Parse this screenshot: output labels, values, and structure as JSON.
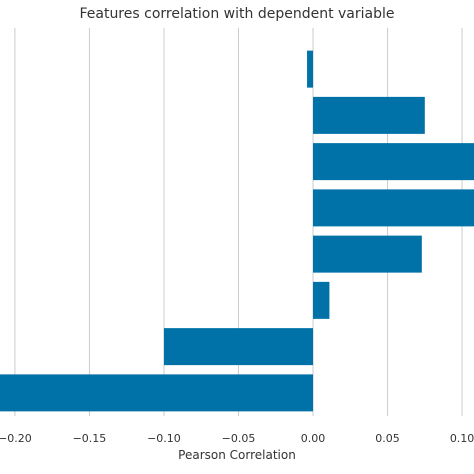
{
  "chart_data": {
    "type": "bar",
    "orientation": "horizontal",
    "title": "Features correlation with dependent variable",
    "xlabel": "Pearson Correlation",
    "ylabel": "",
    "xlim": [
      -0.21,
      0.108
    ],
    "grid": true,
    "bar_color": "#0072a8",
    "grid_color": "#cccccc",
    "x_ticks": [
      -0.2,
      -0.15,
      -0.1,
      -0.05,
      0.0,
      0.05,
      0.1
    ],
    "x_tick_labels": [
      "−0.20",
      "−0.15",
      "−0.10",
      "−0.05",
      "0.00",
      "0.05",
      "0.10"
    ],
    "values": [
      -0.004,
      0.075,
      0.12,
      0.12,
      0.073,
      0.011,
      -0.1,
      -0.22
    ]
  }
}
